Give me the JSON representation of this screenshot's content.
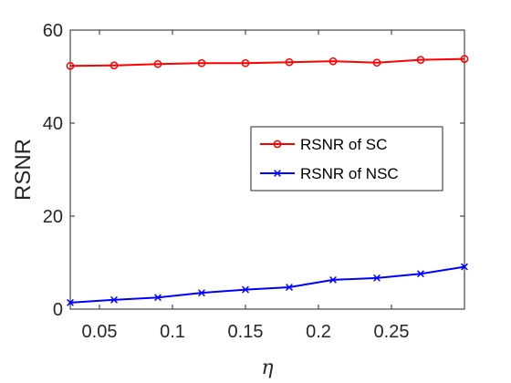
{
  "chart_data": {
    "type": "line",
    "title": "",
    "xlabel": "η",
    "ylabel": "RSNR",
    "xlim": [
      0.03,
      0.3
    ],
    "ylim": [
      0,
      60
    ],
    "xticks": [
      0.05,
      0.1,
      0.15,
      0.2,
      0.25
    ],
    "xtick_labels": [
      "0.05",
      "0.1",
      "0.15",
      "0.2",
      "0.25"
    ],
    "yticks": [
      0,
      20,
      40,
      60
    ],
    "ytick_labels": [
      "0",
      "20",
      "40",
      "60"
    ],
    "grid": false,
    "legend_position": "center-right",
    "x": [
      0.03,
      0.06,
      0.09,
      0.12,
      0.15,
      0.18,
      0.21,
      0.24,
      0.27,
      0.3
    ],
    "series": [
      {
        "name": "RSNR of SC",
        "color": "#ff0000",
        "marker": "circle",
        "values": [
          52.3,
          52.4,
          52.7,
          52.9,
          52.9,
          53.1,
          53.3,
          53.0,
          53.6,
          53.8
        ]
      },
      {
        "name": "RSNR of NSC",
        "color": "#0000ff",
        "marker": "x",
        "values": [
          1.4,
          2.0,
          2.5,
          3.5,
          4.2,
          4.7,
          6.3,
          6.7,
          7.6,
          9.1
        ]
      }
    ]
  }
}
